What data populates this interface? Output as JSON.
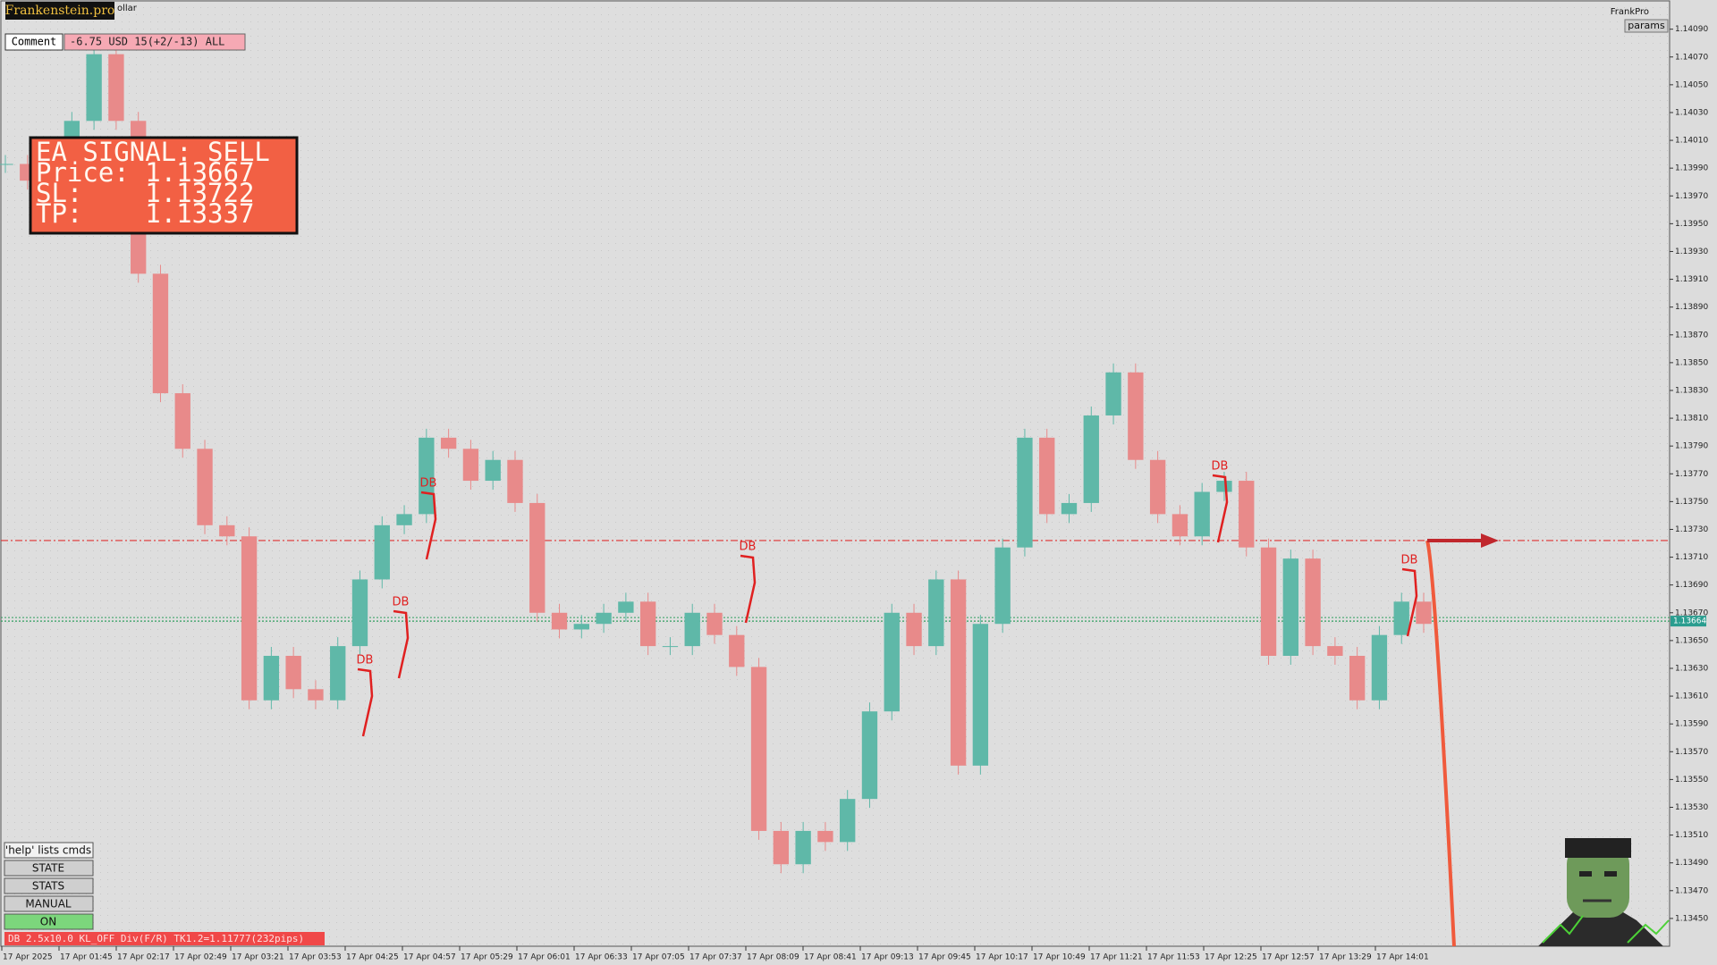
{
  "header": {
    "brand": "Frankenstein.pro",
    "symbol_fragment": "ollar",
    "account": "FrankPro",
    "params_button": "params"
  },
  "comment": {
    "label": "Comment",
    "text": "-6.75 USD 15(+2/-13) ALL"
  },
  "signal": {
    "lines": [
      "EA SIGNAL: SELL",
      "Price: 1.13667",
      "SL:    1.13722",
      "TP:    1.13337"
    ]
  },
  "chart": {
    "type": "candlestick",
    "ylim": [
      1.1343,
      1.14111
    ],
    "yticks": [
      {
        "value": 1.1409,
        "label": "1.14090"
      },
      {
        "value": 1.1407,
        "label": "1.14070"
      },
      {
        "value": 1.1405,
        "label": "1.14050"
      },
      {
        "value": 1.1403,
        "label": "1.14030"
      },
      {
        "value": 1.1401,
        "label": "1.14010"
      },
      {
        "value": 1.1399,
        "label": "1.13990"
      },
      {
        "value": 1.1397,
        "label": "1.13970"
      },
      {
        "value": 1.1395,
        "label": "1.13950"
      },
      {
        "value": 1.1393,
        "label": "1.13930"
      },
      {
        "value": 1.1391,
        "label": "1.13910"
      },
      {
        "value": 1.1389,
        "label": "1.13890"
      },
      {
        "value": 1.1387,
        "label": "1.13870"
      },
      {
        "value": 1.1385,
        "label": "1.13850"
      },
      {
        "value": 1.1383,
        "label": "1.13830"
      },
      {
        "value": 1.1381,
        "label": "1.13810"
      },
      {
        "value": 1.1379,
        "label": "1.13790"
      },
      {
        "value": 1.1377,
        "label": "1.13770"
      },
      {
        "value": 1.1375,
        "label": "1.13750"
      },
      {
        "value": 1.1373,
        "label": "1.13730"
      },
      {
        "value": 1.1371,
        "label": "1.13710"
      },
      {
        "value": 1.1369,
        "label": "1.13690"
      },
      {
        "value": 1.1367,
        "label": "1.13670"
      },
      {
        "value": 1.1365,
        "label": "1.13650"
      },
      {
        "value": 1.1363,
        "label": "1.13630"
      },
      {
        "value": 1.1361,
        "label": "1.13610"
      },
      {
        "value": 1.1359,
        "label": "1.13590"
      },
      {
        "value": 1.1357,
        "label": "1.13570"
      },
      {
        "value": 1.1355,
        "label": "1.13550"
      },
      {
        "value": 1.1353,
        "label": "1.13530"
      },
      {
        "value": 1.1351,
        "label": "1.13510"
      },
      {
        "value": 1.1349,
        "label": "1.13490"
      },
      {
        "value": 1.1347,
        "label": "1.13470"
      },
      {
        "value": 1.1345,
        "label": "1.13450"
      }
    ],
    "xticks": [
      "17 Apr 2025",
      "17 Apr 01:45",
      "17 Apr 02:17",
      "17 Apr 02:49",
      "17 Apr 03:21",
      "17 Apr 03:53",
      "17 Apr 04:25",
      "17 Apr 04:57",
      "17 Apr 05:29",
      "17 Apr 06:01",
      "17 Apr 06:33",
      "17 Apr 07:05",
      "17 Apr 07:37",
      "17 Apr 08:09",
      "17 Apr 08:41",
      "17 Apr 09:13",
      "17 Apr 09:45",
      "17 Apr 10:17",
      "17 Apr 10:49",
      "17 Apr 11:21",
      "17 Apr 11:53",
      "17 Apr 12:25",
      "17 Apr 12:57",
      "17 Apr 13:29",
      "17 Apr 14:01"
    ],
    "closes": [
      1.13993,
      1.13981,
      1.14001,
      1.14024,
      1.14072,
      1.14024,
      1.13914,
      1.13828,
      1.13788,
      1.13733,
      1.13725,
      1.13607,
      1.13639,
      1.13615,
      1.13607,
      1.13646,
      1.13694,
      1.13733,
      1.13741,
      1.13796,
      1.13788,
      1.13765,
      1.1378,
      1.13749,
      1.1367,
      1.13658,
      1.13662,
      1.1367,
      1.13678,
      1.13646,
      1.13646,
      1.1367,
      1.13654,
      1.13631,
      1.13513,
      1.13489,
      1.13513,
      1.13505,
      1.13536,
      1.13599,
      1.1367,
      1.13646,
      1.13694,
      1.1356,
      1.13662,
      1.13717,
      1.13796,
      1.13741,
      1.13749,
      1.13812,
      1.13843,
      1.1378,
      1.13741,
      1.13725,
      1.13757,
      1.13765,
      1.13717,
      1.13639,
      1.13709,
      1.13646,
      1.13639,
      1.13607,
      1.13654,
      1.13678,
      1.13662
    ],
    "up_color": "#5fb8a8",
    "down_color": "#e88a8a",
    "sl_line": 1.13722,
    "bid_line": 1.13664,
    "annotations": [
      "DB",
      "DB",
      "DB",
      "DB",
      "DB",
      "DB"
    ]
  },
  "buttons": [
    "'help' lists cmds",
    "STATE",
    "STATS",
    "MANUAL",
    "ON"
  ],
  "status": "DB 2.5x10.0 KL_OFF Div(F/R) TK1.2=1.11777(232pips)"
}
